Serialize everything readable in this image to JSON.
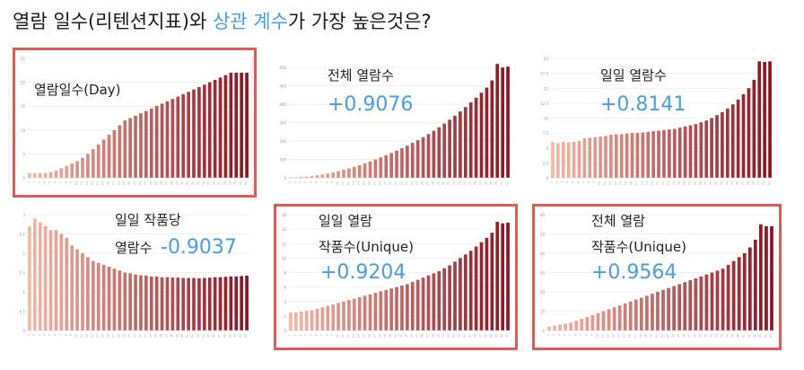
{
  "headline": {
    "part1": "열람 일수(리텐션지표)와 ",
    "highlight": "상관 계수",
    "part2": "가 가장 높은것은?"
  },
  "colors": {
    "accent": "#4a9ee6",
    "frame": "#e05a5a",
    "bar_light": "#f4b8a6",
    "bar_dark": "#8a1420",
    "grid": "#e6e6e6"
  },
  "panels": [
    {
      "id": "p1",
      "label1": "열람일수(Day)",
      "label2": "",
      "corr": "",
      "highlighted": true
    },
    {
      "id": "p2",
      "label1": "전체 열람수",
      "label2": "",
      "corr": "+0.9076",
      "highlighted": false
    },
    {
      "id": "p3",
      "label1": "일일 열람수",
      "label2": "",
      "corr": "+0.8141",
      "highlighted": false
    },
    {
      "id": "p4",
      "label1": "일일 작품당",
      "label2": "열람수",
      "corr": "-0.9037",
      "highlighted": false
    },
    {
      "id": "p5",
      "label1": "일일 열람",
      "label2": "작품수(Unique)",
      "corr": "+0.9204",
      "highlighted": true
    },
    {
      "id": "p6",
      "label1": "전체 열람",
      "label2": "작품수(Unique)",
      "corr": "+0.9564",
      "highlighted": true
    }
  ],
  "chart_data": [
    {
      "type": "bar",
      "panel": "p1",
      "values": [
        1,
        1,
        1,
        1,
        1.2,
        1.5,
        2,
        2.5,
        3,
        3.5,
        4.2,
        5,
        6,
        7,
        8,
        9,
        10,
        11,
        12,
        12.5,
        13,
        13.5,
        14,
        14.5,
        15,
        15.5,
        16,
        16.5,
        17,
        17.5,
        18,
        18.5,
        19,
        19.5,
        20,
        20.5,
        21,
        21.5,
        22,
        22,
        22,
        22
      ],
      "ylim": [
        0,
        25
      ],
      "yticks": [
        0,
        5,
        10,
        15,
        20,
        25
      ]
    },
    {
      "type": "bar",
      "panel": "p2",
      "values": [
        2,
        3,
        5,
        7,
        10,
        14,
        18,
        23,
        29,
        36,
        43,
        51,
        60,
        69,
        79,
        89,
        100,
        111,
        123,
        135,
        148,
        161,
        175,
        190,
        205,
        221,
        238,
        256,
        275,
        295,
        316,
        338,
        361,
        385,
        410,
        436,
        463,
        491,
        530,
        620,
        600,
        605
      ],
      "ylim": [
        0,
        650
      ],
      "yticks": [
        0,
        100,
        200,
        300,
        400,
        500,
        600
      ]
    },
    {
      "type": "bar",
      "panel": "p3",
      "values": [
        6.0,
        5.8,
        6.0,
        5.9,
        6.0,
        6.2,
        6.6,
        6.7,
        6.8,
        6.9,
        7.0,
        7.2,
        7.3,
        7.3,
        7.4,
        7.5,
        7.5,
        7.6,
        7.7,
        7.8,
        7.9,
        8.0,
        8.1,
        8.2,
        8.4,
        8.6,
        8.8,
        9.0,
        9.3,
        9.6,
        10.0,
        10.5,
        11.0,
        11.6,
        12.3,
        13.1,
        14.0,
        15.0,
        16.4,
        19.5,
        19.4,
        19.5
      ],
      "ylim": [
        0,
        20
      ],
      "yticks": [
        0,
        2.5,
        5,
        7.5,
        10,
        12.5,
        15,
        17.5,
        20
      ]
    },
    {
      "type": "bar",
      "panel": "p4",
      "values": [
        2.7,
        2.9,
        2.8,
        2.7,
        2.6,
        2.6,
        2.5,
        2.4,
        2.2,
        2.1,
        2.0,
        1.9,
        1.8,
        1.75,
        1.7,
        1.65,
        1.6,
        1.55,
        1.5,
        1.48,
        1.45,
        1.43,
        1.42,
        1.4,
        1.4,
        1.38,
        1.38,
        1.37,
        1.37,
        1.36,
        1.36,
        1.36,
        1.35,
        1.36,
        1.37,
        1.38,
        1.38,
        1.39,
        1.4,
        1.4,
        1.41,
        1.42
      ],
      "ylim": [
        0,
        3
      ],
      "yticks": [
        0,
        0.5,
        1,
        1.5,
        2,
        2.5,
        3
      ]
    },
    {
      "type": "bar",
      "panel": "p5",
      "values": [
        2.5,
        2.5,
        2.6,
        2.7,
        2.8,
        3.0,
        3.2,
        3.4,
        3.6,
        3.8,
        4.0,
        4.2,
        4.4,
        4.6,
        4.8,
        5.0,
        5.2,
        5.4,
        5.6,
        5.8,
        6.0,
        6.2,
        6.4,
        6.7,
        7.0,
        7.3,
        7.6,
        7.9,
        8.2,
        8.6,
        9.0,
        9.5,
        10.0,
        10.5,
        11.0,
        11.6,
        12.2,
        12.8,
        13.5,
        15.0,
        14.8,
        14.9
      ],
      "ylim": [
        0,
        16
      ],
      "yticks": [
        0,
        2,
        4,
        6,
        8,
        10,
        12,
        14,
        16
      ]
    },
    {
      "type": "bar",
      "panel": "p6",
      "values": [
        2,
        2.5,
        3,
        3.5,
        4,
        5,
        6,
        7,
        8,
        9,
        10,
        11,
        12,
        13,
        14,
        15,
        16,
        17,
        18,
        19,
        20,
        21,
        22,
        23,
        24,
        25,
        26,
        27,
        28,
        29,
        30,
        31,
        32,
        34,
        36,
        38,
        40,
        43,
        47,
        55,
        54,
        54
      ],
      "ylim": [
        0,
        60
      ],
      "yticks": [
        0,
        10,
        20,
        30,
        40,
        50,
        60
      ]
    }
  ]
}
